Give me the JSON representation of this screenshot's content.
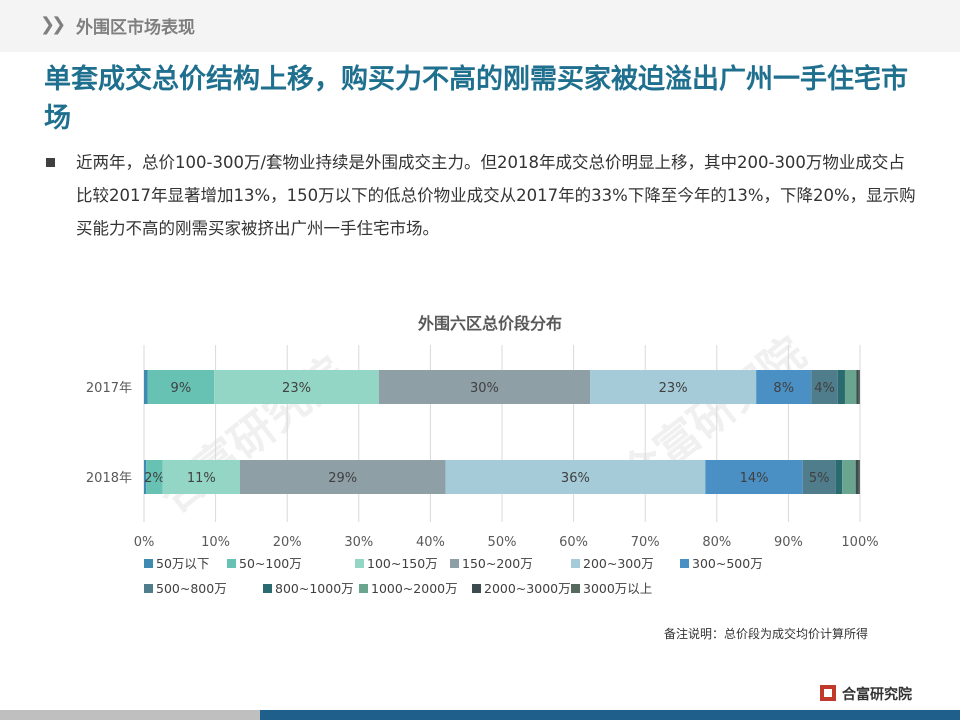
{
  "header": {
    "section_title": "外围区市场表现"
  },
  "headline": "单套成交总价结构上移，购买力不高的刚需买家被迫溢出广州一手住宅市场",
  "body_text": "近两年，总价100-300万/套物业持续是外围成交主力。但2018年成交总价明显上移，其中200-300万物业成交占比较2017年显著增加13%，150万以下的低总价物业成交从2017年的33%下降至今年的13%，下降20%，显示购买能力不高的刚需买家被挤出广州一手住宅市场。",
  "watermark": "合富研究院",
  "note": "备注说明：总价段为成交均价计算所得",
  "brand": "合富研究院",
  "chart_data": {
    "type": "bar",
    "orientation": "horizontal",
    "stacked": true,
    "title": "外围六区总价段分布",
    "categories": [
      "2017年",
      "2018年"
    ],
    "xlim": [
      0,
      100
    ],
    "xticks": [
      "0%",
      "10%",
      "20%",
      "30%",
      "40%",
      "50%",
      "60%",
      "70%",
      "80%",
      "90%",
      "100%"
    ],
    "grid": true,
    "legend_position": "bottom",
    "series": [
      {
        "name": "50万以下",
        "color": "#3e8ab0",
        "values": [
          0.5,
          0.3
        ],
        "labels": [
          "",
          ""
        ]
      },
      {
        "name": "50~100万",
        "color": "#67c2b4",
        "values": [
          9.3,
          2.3
        ],
        "labels": [
          "9%",
          "2%"
        ]
      },
      {
        "name": "100~150万",
        "color": "#93d6c5",
        "values": [
          23.0,
          10.8
        ],
        "labels": [
          "23%",
          "11%"
        ]
      },
      {
        "name": "150~200万",
        "color": "#8e9fa6",
        "values": [
          29.5,
          28.7
        ],
        "labels": [
          "30%",
          "29%"
        ]
      },
      {
        "name": "200~300万",
        "color": "#a5cad8",
        "values": [
          23.2,
          36.3
        ],
        "labels": [
          "23%",
          "36%"
        ]
      },
      {
        "name": "300~500万",
        "color": "#4a90c4",
        "values": [
          7.7,
          13.6
        ],
        "labels": [
          "8%",
          "14%"
        ]
      },
      {
        "name": "500~800万",
        "color": "#4f7d8c",
        "values": [
          3.7,
          4.6
        ],
        "labels": [
          "4%",
          "5%"
        ]
      },
      {
        "name": "800~1000万",
        "color": "#2a6b6f",
        "values": [
          1.0,
          0.9
        ],
        "labels": [
          "",
          ""
        ]
      },
      {
        "name": "1000~2000万",
        "color": "#6aa58f",
        "values": [
          1.6,
          1.9
        ],
        "labels": [
          "",
          ""
        ]
      },
      {
        "name": "2000~3000万",
        "color": "#3d4a4f",
        "values": [
          0.3,
          0.4
        ],
        "labels": [
          "",
          ""
        ]
      },
      {
        "name": "3000万以上",
        "color": "#566a60",
        "values": [
          0.2,
          0.2
        ],
        "labels": [
          "",
          ""
        ]
      }
    ]
  }
}
